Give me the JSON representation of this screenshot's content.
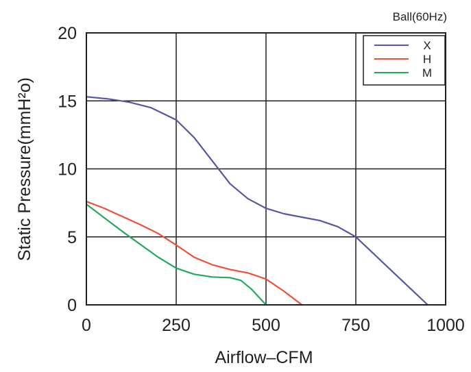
{
  "chart_data": {
    "type": "line",
    "corner_note": "Ball(60Hz)",
    "xlabel": "Airflow–CFM",
    "ylabel": "Static Pressure(mmH²o)",
    "xlim": [
      0,
      1000
    ],
    "ylim": [
      0,
      20
    ],
    "x_ticks": [
      "0",
      "250",
      "500",
      "750",
      "1000"
    ],
    "y_ticks": [
      "0",
      "5",
      "10",
      "15",
      "20"
    ],
    "grid": true,
    "legend_position": "top-right",
    "series": [
      {
        "name": "X",
        "color": "#5555a8",
        "points": [
          [
            0,
            15.3
          ],
          [
            60,
            15.15
          ],
          [
            120,
            14.9
          ],
          [
            180,
            14.5
          ],
          [
            250,
            13.6
          ],
          [
            300,
            12.3
          ],
          [
            350,
            10.6
          ],
          [
            400,
            8.9
          ],
          [
            450,
            7.8
          ],
          [
            500,
            7.1
          ],
          [
            550,
            6.7
          ],
          [
            600,
            6.45
          ],
          [
            650,
            6.2
          ],
          [
            700,
            5.75
          ],
          [
            750,
            5.0
          ],
          [
            800,
            3.75
          ],
          [
            850,
            2.5
          ],
          [
            900,
            1.25
          ],
          [
            950,
            0.0
          ]
        ]
      },
      {
        "name": "H",
        "color": "#f04e37",
        "points": [
          [
            0,
            7.6
          ],
          [
            50,
            7.1
          ],
          [
            100,
            6.5
          ],
          [
            150,
            5.9
          ],
          [
            200,
            5.25
          ],
          [
            250,
            4.4
          ],
          [
            300,
            3.5
          ],
          [
            350,
            2.95
          ],
          [
            400,
            2.6
          ],
          [
            450,
            2.35
          ],
          [
            500,
            1.9
          ],
          [
            550,
            1.0
          ],
          [
            600,
            0.0
          ]
        ]
      },
      {
        "name": "M",
        "color": "#22a95c",
        "points": [
          [
            0,
            7.4
          ],
          [
            50,
            6.4
          ],
          [
            100,
            5.4
          ],
          [
            150,
            4.45
          ],
          [
            200,
            3.5
          ],
          [
            250,
            2.7
          ],
          [
            300,
            2.25
          ],
          [
            350,
            2.05
          ],
          [
            400,
            2.0
          ],
          [
            430,
            1.8
          ],
          [
            460,
            1.15
          ],
          [
            500,
            0.0
          ]
        ]
      }
    ]
  }
}
